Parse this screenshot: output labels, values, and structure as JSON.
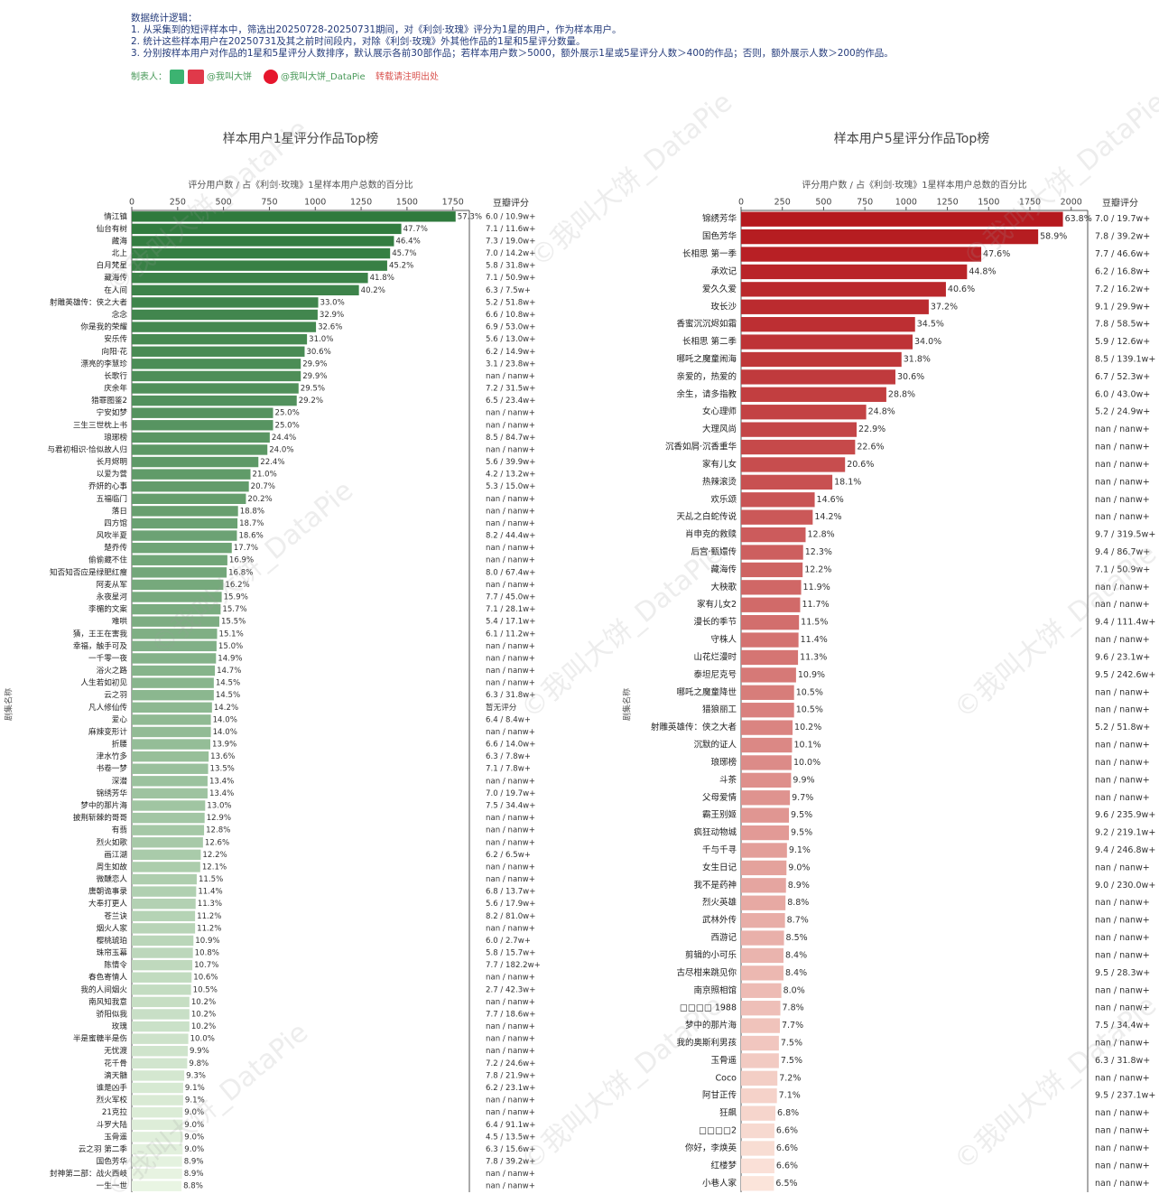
{
  "header": {
    "heading": "数据统计逻辑：",
    "lines": [
      "1. 从采集到的短评样本中，筛选出20250728-20250731期间，对《利剑·玫瑰》评分为1星的用户，作为样本用户。",
      "2. 统计这些样本用户在20250731及其之前时间段内，对除《利剑·玫瑰》外其他作品的1星和5星评分数量。",
      "3. 分别按样本用户对作品的1星和5星评分人数排序，默认展示各前30部作品；若样本用户数＞5000，额外展示1星或5星评分人数＞400的作品；否则，额外展示人数＞200的作品。"
    ],
    "maker": "制表人：",
    "author1": "@我叫大饼",
    "author2": "@我叫大饼_DataPie",
    "notice": "转载请注明出处"
  },
  "watermark": "©我叫大饼_DataPie",
  "chart_data": [
    {
      "type": "bar",
      "orientation": "horizontal",
      "title": "样本用户1星评分作品Top榜",
      "xlabel": "评分用户数 / 占《利剑·玫瑰》1星样本用户总数的百分比",
      "ylabel": "剧集名称",
      "douban_header": "豆瓣评分",
      "xlim": [
        0,
        1840
      ],
      "xticks": [
        0,
        250,
        500,
        750,
        1000,
        1250,
        1500,
        1750
      ],
      "color_scale": [
        "#2f7a3d",
        "#e9f5e3"
      ],
      "categories": [
        "情江镇",
        "仙台有树",
        "藏海",
        "北上",
        "白月梵星",
        "藏海传",
        "在人间",
        "射雕英雄传：侠之大者",
        "念念",
        "你是我的荣耀",
        "安乐传",
        "向阳·花",
        "漂亮的李慧珍",
        "长歌行",
        "庆余年",
        "猎罪图鉴2",
        "宁安如梦",
        "三生三世枕上书",
        "琅琊榜",
        "与君初相识·恰似故人归",
        "长月烬明",
        "以爱为营",
        "乔妍的心事",
        "五福临门",
        "落日",
        "四方馆",
        "风吹半夏",
        "楚乔传",
        "偷偷藏不住",
        "知否知否应是绿肥红瘦",
        "阿麦从军",
        "永夜星河",
        "李楣的文案",
        "难哄",
        "猜，王王在害我",
        "幸福，触手可及",
        "一千零一夜",
        "浴火之路",
        "人生若如初见",
        "云之羽",
        "凡人修仙传",
        "爱心",
        "麻辣变形计",
        "折腰",
        "津水竹多",
        "书卷一梦",
        "深潜",
        "锦绣芳华",
        "梦中的那片海",
        "披荆斩棘的哥哥",
        "有翡",
        "烈火如歌",
        "画江湖",
        "周生如故",
        "微醺恋人",
        "唐朝诡事录",
        "大奉打更人",
        "苍兰诀",
        "烟火人家",
        "樱桃琥珀",
        "珠帘玉幕",
        "陈情令",
        "春色寄情人",
        "我的人间烟火",
        "南风知我意",
        "骄阳似我",
        "玫瑰",
        "半是蜜糖半是伤",
        "无忧渡",
        "花千骨",
        "滴天髓",
        "谁是凶手",
        "烈火军校",
        "21克拉",
        "斗罗大陆",
        "玉骨遥",
        "云之羽 第二季",
        "国色芳华",
        "封神第二部：战火西岐",
        "一生一世"
      ],
      "values": [
        1765,
        1469,
        1429,
        1408,
        1392,
        1287,
        1238,
        1016,
        1013,
        1004,
        955,
        942,
        921,
        921,
        909,
        899,
        770,
        770,
        752,
        739,
        690,
        647,
        638,
        622,
        579,
        576,
        573,
        545,
        521,
        517,
        499,
        490,
        484,
        477,
        465,
        462,
        459,
        453,
        447,
        447,
        437,
        431,
        431,
        428,
        419,
        416,
        413,
        413,
        400,
        397,
        394,
        388,
        376,
        373,
        354,
        351,
        348,
        345,
        345,
        336,
        333,
        330,
        326,
        323,
        314,
        314,
        314,
        308,
        305,
        302,
        286,
        280,
        280,
        277,
        277,
        277,
        277,
        274,
        274,
        271
      ],
      "pct_labels": [
        "57.3%",
        "47.7%",
        "46.4%",
        "45.7%",
        "45.2%",
        "41.8%",
        "40.2%",
        "33.0%",
        "32.9%",
        "32.6%",
        "31.0%",
        "30.6%",
        "29.9%",
        "29.9%",
        "29.5%",
        "29.2%",
        "25.0%",
        "25.0%",
        "24.4%",
        "24.0%",
        "22.4%",
        "21.0%",
        "20.7%",
        "20.2%",
        "18.8%",
        "18.7%",
        "18.6%",
        "17.7%",
        "16.9%",
        "16.8%",
        "16.2%",
        "15.9%",
        "15.7%",
        "15.5%",
        "15.1%",
        "15.0%",
        "14.9%",
        "14.7%",
        "14.5%",
        "14.5%",
        "14.2%",
        "14.0%",
        "14.0%",
        "13.9%",
        "13.6%",
        "13.5%",
        "13.4%",
        "13.4%",
        "13.0%",
        "12.9%",
        "12.8%",
        "12.6%",
        "12.2%",
        "12.1%",
        "11.5%",
        "11.4%",
        "11.3%",
        "11.2%",
        "11.2%",
        "10.9%",
        "10.8%",
        "10.7%",
        "10.6%",
        "10.5%",
        "10.2%",
        "10.2%",
        "10.2%",
        "10.0%",
        "9.9%",
        "9.8%",
        "9.3%",
        "9.1%",
        "9.1%",
        "9.0%",
        "9.0%",
        "9.0%",
        "9.0%",
        "8.9%",
        "8.9%",
        "8.8%"
      ],
      "douban": [
        "6.0 / 10.9w+",
        "7.1 / 11.6w+",
        "7.3 / 19.0w+",
        "7.0 / 14.2w+",
        "5.8 / 31.8w+",
        "7.1 / 50.9w+",
        "6.3 / 7.5w+",
        "5.2 / 51.8w+",
        "6.6 / 10.8w+",
        "6.9 / 53.0w+",
        "5.6 / 13.0w+",
        "6.2 / 14.9w+",
        "3.1 / 23.8w+",
        "nan / nanw+",
        "7.2 / 31.5w+",
        "6.5 / 23.4w+",
        "nan / nanw+",
        "nan / nanw+",
        "8.5 / 84.7w+",
        "nan / nanw+",
        "5.6 / 39.9w+",
        "4.2 / 13.2w+",
        "5.3 / 15.0w+",
        "nan / nanw+",
        "nan / nanw+",
        "nan / nanw+",
        "8.2 / 44.4w+",
        "nan / nanw+",
        "nan / nanw+",
        "8.0 / 67.4w+",
        "nan / nanw+",
        "7.7 / 45.0w+",
        "7.1 / 28.1w+",
        "5.4 / 17.1w+",
        "6.1 / 11.2w+",
        "nan / nanw+",
        "nan / nanw+",
        "nan / nanw+",
        "nan / nanw+",
        "6.3 / 31.8w+",
        "暂无评分",
        "6.4 / 8.4w+",
        "nan / nanw+",
        "6.6 / 14.0w+",
        "6.3 / 7.8w+",
        "7.1 / 7.8w+",
        "nan / nanw+",
        "7.0 / 19.7w+",
        "7.5 / 34.4w+",
        "nan / nanw+",
        "nan / nanw+",
        "nan / nanw+",
        "6.2 / 6.5w+",
        "nan / nanw+",
        "nan / nanw+",
        "6.8 / 13.7w+",
        "5.6 / 17.9w+",
        "8.2 / 81.0w+",
        "nan / nanw+",
        "6.0 / 2.7w+",
        "5.8 / 15.7w+",
        "7.7 / 182.2w+",
        "nan / nanw+",
        "2.7 / 42.3w+",
        "nan / nanw+",
        "7.7 / 18.6w+",
        "nan / nanw+",
        "nan / nanw+",
        "nan / nanw+",
        "7.2 / 24.6w+",
        "7.8 / 21.9w+",
        "6.2 / 23.1w+",
        "nan / nanw+",
        "nan / nanw+",
        "6.4 / 91.1w+",
        "4.5 / 13.5w+",
        "6.3 / 15.6w+",
        "7.8 / 39.2w+",
        "nan / nanw+",
        "nan / nanw+"
      ]
    },
    {
      "type": "bar",
      "orientation": "horizontal",
      "title": "样本用户5星评分作品Top榜",
      "xlabel": "评分用户数 / 占《利剑·玫瑰》1星样本用户总数的百分比",
      "ylabel": "剧集名称",
      "douban_header": "豆瓣评分",
      "xlim": [
        0,
        2100
      ],
      "xticks": [
        0,
        250,
        500,
        750,
        1000,
        1250,
        1500,
        1750,
        2000
      ],
      "color_scale": [
        "#b5191e",
        "#fbe4da"
      ],
      "categories": [
        "锦绣芳华",
        "国色芳华",
        "长相思 第一季",
        "承欢记",
        "爱久久爱",
        "玫长沙",
        "香蜜沉沉烬如霜",
        "长相思 第二季",
        "哪吒之魔童闹海",
        "亲爱的，热爱的",
        "余生，请多指教",
        "女心理师",
        "大理风尚",
        "沉香如屑·沉香重华",
        "家有儿女",
        "热辣滚烫",
        "欢乐颂",
        "天乩之白蛇传说",
        "肖申克的救赎",
        "后宫·甄嬛传",
        "藏海传",
        "大秧歌",
        "家有儿女2",
        "漫长的季节",
        "守株人",
        "山花烂漫时",
        "泰坦尼克号",
        "哪吒之魔童降世",
        "猎狼丽工",
        "射雕英雄传：侠之大者",
        "沉默的证人",
        "琅琊榜",
        "斗茶",
        "父母爱情",
        "霸王别姬",
        "疯狂动物城",
        "千与千寻",
        "女生日记",
        "我不是药神",
        "烈火英雄",
        "武林外传",
        "西游记",
        "剪辑的小可乐",
        "古尽柑来跳见你",
        "南京照相馆",
        "□□□□ 1988",
        "梦中的那片海",
        "我的奥斯利男孩",
        "玉骨遥",
        "Coco",
        "阿甘正传",
        "狂飙",
        "□□□□2",
        "你好，李焕英",
        "红楼梦",
        "小巷人家"
      ],
      "values": [
        1950,
        1800,
        1455,
        1369,
        1241,
        1137,
        1054,
        1039,
        972,
        935,
        880,
        758,
        700,
        691,
        630,
        553,
        446,
        434,
        391,
        376,
        373,
        364,
        358,
        351,
        348,
        345,
        333,
        321,
        321,
        312,
        309,
        306,
        303,
        296,
        290,
        290,
        278,
        275,
        272,
        269,
        266,
        260,
        257,
        257,
        244,
        238,
        235,
        229,
        229,
        220,
        217,
        208,
        202,
        202,
        202,
        199
      ],
      "pct_labels": [
        "63.8%",
        "58.9%",
        "47.6%",
        "44.8%",
        "40.6%",
        "37.2%",
        "34.5%",
        "34.0%",
        "31.8%",
        "30.6%",
        "28.8%",
        "24.8%",
        "22.9%",
        "22.6%",
        "20.6%",
        "18.1%",
        "14.6%",
        "14.2%",
        "12.8%",
        "12.3%",
        "12.2%",
        "11.9%",
        "11.7%",
        "11.5%",
        "11.4%",
        "11.3%",
        "10.9%",
        "10.5%",
        "10.5%",
        "10.2%",
        "10.1%",
        "10.0%",
        "9.9%",
        "9.7%",
        "9.5%",
        "9.5%",
        "9.1%",
        "9.0%",
        "8.9%",
        "8.8%",
        "8.7%",
        "8.5%",
        "8.4%",
        "8.4%",
        "8.0%",
        "7.8%",
        "7.7%",
        "7.5%",
        "7.5%",
        "7.2%",
        "7.1%",
        "6.8%",
        "6.6%",
        "6.6%",
        "6.6%",
        "6.5%"
      ],
      "douban": [
        "7.0 / 19.7w+",
        "7.8 / 39.2w+",
        "7.7 / 46.6w+",
        "6.2 / 16.8w+",
        "7.2 / 16.2w+",
        "9.1 / 29.9w+",
        "7.8 / 58.5w+",
        "5.9 / 12.6w+",
        "8.5 / 139.1w+",
        "6.7 / 52.3w+",
        "6.0 / 43.0w+",
        "5.2 / 24.9w+",
        "nan / nanw+",
        "nan / nanw+",
        "nan / nanw+",
        "nan / nanw+",
        "nan / nanw+",
        "nan / nanw+",
        "9.7 / 319.5w+",
        "9.4 / 86.7w+",
        "7.1 / 50.9w+",
        "nan / nanw+",
        "nan / nanw+",
        "9.4 / 111.4w+",
        "nan / nanw+",
        "9.6 / 23.1w+",
        "9.5 / 242.6w+",
        "nan / nanw+",
        "nan / nanw+",
        "5.2 / 51.8w+",
        "nan / nanw+",
        "nan / nanw+",
        "nan / nanw+",
        "nan / nanw+",
        "9.6 / 235.9w+",
        "9.2 / 219.1w+",
        "9.4 / 246.8w+",
        "nan / nanw+",
        "9.0 / 230.0w+",
        "nan / nanw+",
        "nan / nanw+",
        "nan / nanw+",
        "nan / nanw+",
        "9.5 / 28.3w+",
        "nan / nanw+",
        "nan / nanw+",
        "7.5 / 34.4w+",
        "nan / nanw+",
        "6.3 / 31.8w+",
        "nan / nanw+",
        "9.5 / 237.1w+",
        "nan / nanw+",
        "nan / nanw+",
        "nan / nanw+",
        "nan / nanw+",
        "nan / nanw+"
      ]
    }
  ]
}
